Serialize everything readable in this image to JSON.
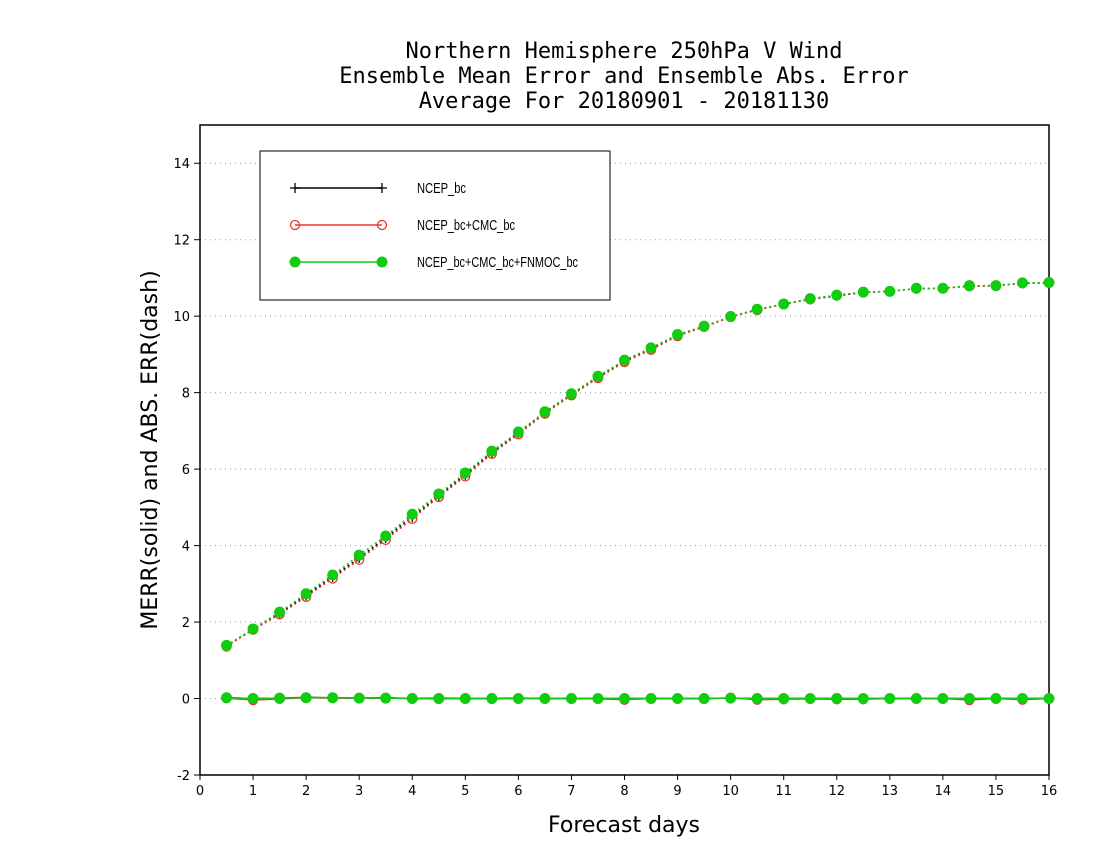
{
  "chart_data": {
    "type": "line",
    "title": [
      "Northern Hemisphere 250hPa V Wind",
      "Ensemble Mean Error and Ensemble Abs. Error",
      "Average For 20180901 - 20181130"
    ],
    "xlabel": "Forecast days",
    "ylabel": "MERR(solid) and ABS. ERR(dash)",
    "xlim": [
      0,
      16
    ],
    "ylim": [
      -2,
      15
    ],
    "xticks": [
      0,
      1,
      2,
      3,
      4,
      5,
      6,
      7,
      8,
      9,
      10,
      11,
      12,
      13,
      14,
      15,
      16
    ],
    "yticks": [
      -2,
      0,
      2,
      4,
      6,
      8,
      10,
      12,
      14
    ],
    "grid": "horizontal dotted",
    "legend_position": "top-left",
    "x": [
      0.5,
      1,
      1.5,
      2,
      2.5,
      3,
      3.5,
      4,
      4.5,
      5,
      5.5,
      6,
      6.5,
      7,
      7.5,
      8,
      8.5,
      9,
      9.5,
      10,
      10.5,
      11,
      11.5,
      12,
      12.5,
      13,
      13.5,
      14,
      14.5,
      15,
      15.5,
      16
    ],
    "series": [
      {
        "name": "NCEP_bc",
        "color": "#000000",
        "marker": "plus",
        "merr": [
          0.02,
          0.0,
          0.01,
          0.03,
          0.02,
          0.01,
          0.02,
          0.0,
          0.01,
          0.0,
          0.0,
          0.01,
          0.0,
          0.0,
          0.0,
          0.0,
          0.0,
          0.0,
          0.0,
          0.01,
          0.0,
          0.0,
          0.0,
          0.0,
          0.0,
          0.0,
          0.0,
          0.0,
          0.0,
          0.0,
          0.0,
          0.0
        ],
        "abs_err": [
          1.38,
          1.81,
          2.23,
          2.7,
          3.18,
          3.68,
          4.2,
          4.75,
          5.3,
          5.85,
          6.43,
          6.95,
          7.48,
          7.95,
          8.4,
          8.83,
          9.15,
          9.5,
          9.72,
          9.98,
          10.17,
          10.32,
          10.44,
          10.53,
          10.62,
          10.65,
          10.72,
          10.73,
          10.79,
          10.8,
          10.86,
          10.87
        ]
      },
      {
        "name": "NCEP_bc+CMC_bc",
        "color": "#ee3333",
        "marker": "open-circle",
        "merr": [
          0.01,
          -0.04,
          -0.01,
          0.02,
          0.01,
          0.01,
          0.01,
          0.0,
          -0.01,
          0.0,
          -0.01,
          0.0,
          0.0,
          0.0,
          -0.01,
          -0.03,
          0.0,
          0.0,
          -0.01,
          0.02,
          -0.03,
          -0.02,
          -0.01,
          -0.02,
          -0.02,
          0.0,
          0.0,
          0.0,
          -0.04,
          0.0,
          -0.03,
          0.0
        ],
        "abs_err": [
          1.36,
          1.8,
          2.2,
          2.66,
          3.14,
          3.63,
          4.15,
          4.7,
          5.27,
          5.81,
          6.4,
          6.91,
          7.45,
          7.93,
          8.38,
          8.8,
          9.12,
          9.48,
          9.72,
          9.98,
          10.16,
          10.31,
          10.44,
          10.55,
          10.62,
          10.65,
          10.72,
          10.73,
          10.78,
          10.79,
          10.86,
          10.87
        ]
      },
      {
        "name": "NCEP_bc+CMC_bc+FNMOC_bc",
        "color": "#11cc11",
        "marker": "filled-circle",
        "merr": [
          0.02,
          0.0,
          0.01,
          0.02,
          0.02,
          0.01,
          0.01,
          0.0,
          0.0,
          0.0,
          0.0,
          0.0,
          0.0,
          0.0,
          0.0,
          0.0,
          0.0,
          0.0,
          0.0,
          0.01,
          0.0,
          0.0,
          0.0,
          0.0,
          0.0,
          0.0,
          0.0,
          0.0,
          0.0,
          0.0,
          0.0,
          0.0
        ],
        "abs_err": [
          1.39,
          1.82,
          2.26,
          2.74,
          3.23,
          3.75,
          4.25,
          4.82,
          5.35,
          5.9,
          6.47,
          6.97,
          7.5,
          7.97,
          8.43,
          8.85,
          9.17,
          9.52,
          9.74,
          9.99,
          10.18,
          10.32,
          10.46,
          10.55,
          10.63,
          10.65,
          10.73,
          10.73,
          10.8,
          10.8,
          10.87,
          10.88
        ]
      }
    ]
  }
}
